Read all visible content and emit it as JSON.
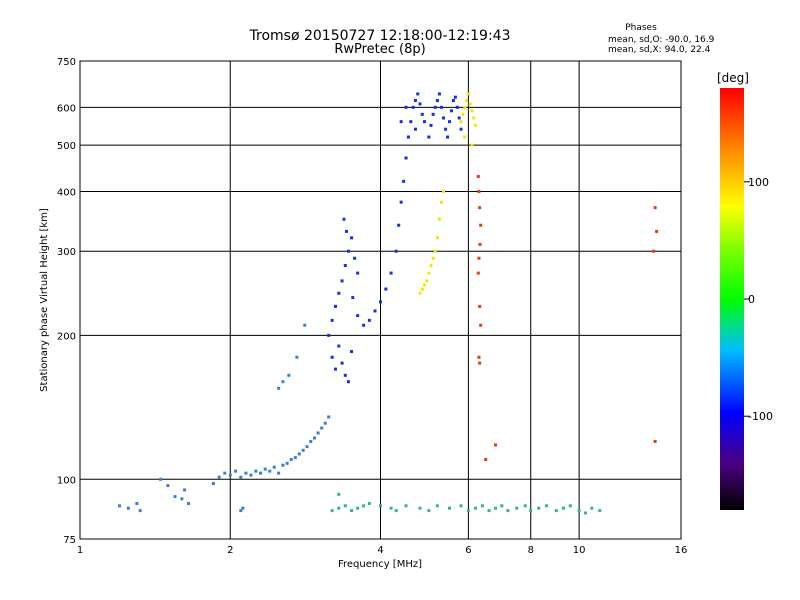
{
  "chart_data": {
    "type": "scatter",
    "title": "Tromsø 20150727 12:18:00-12:19:43",
    "subtitle": "RwPretec (8p)",
    "xlabel": "Frequency [MHz]",
    "ylabel": "Stationary phase Virtual Height [km]",
    "x_scale": "log",
    "y_scale": "log",
    "xlim": [
      1,
      16
    ],
    "ylim": [
      75,
      750
    ],
    "x_ticks": [
      1,
      2,
      4,
      6,
      8,
      10,
      16
    ],
    "y_ticks": [
      75,
      100,
      200,
      300,
      400,
      500,
      600,
      750
    ],
    "grid": true,
    "stats": {
      "heading": "Phases",
      "line_o": "mean, sd,O: -90.0, 16.9",
      "line_x": "mean, sd,X:  94.0, 22.4"
    },
    "colorbar": {
      "label": "[deg]",
      "ticks": [
        100,
        0,
        -100
      ],
      "range": [
        -180,
        180
      ]
    },
    "series": [
      {
        "points": [
          [
            1.2,
            88
          ],
          [
            1.25,
            87
          ],
          [
            1.3,
            89
          ],
          [
            1.32,
            86
          ],
          [
            1.45,
            100
          ],
          [
            1.5,
            97
          ],
          [
            1.55,
            92
          ],
          [
            1.6,
            91
          ],
          [
            1.65,
            89
          ],
          [
            1.62,
            95
          ],
          [
            1.85,
            98
          ],
          [
            1.9,
            101
          ],
          [
            1.95,
            103
          ],
          [
            2.0,
            102
          ],
          [
            2.05,
            104
          ],
          [
            2.1,
            101
          ],
          [
            2.15,
            103
          ],
          [
            2.2,
            102
          ],
          [
            2.25,
            104
          ],
          [
            2.3,
            103
          ],
          [
            2.35,
            105
          ],
          [
            2.4,
            104
          ],
          [
            2.45,
            106
          ],
          [
            2.5,
            103
          ],
          [
            2.55,
            107
          ],
          [
            2.6,
            108
          ],
          [
            2.65,
            110
          ],
          [
            2.7,
            111
          ],
          [
            2.75,
            113
          ],
          [
            2.8,
            115
          ],
          [
            2.85,
            117
          ],
          [
            2.9,
            120
          ],
          [
            2.95,
            122
          ],
          [
            3.0,
            125
          ],
          [
            3.05,
            128
          ],
          [
            3.1,
            131
          ],
          [
            3.15,
            135
          ],
          [
            2.5,
            155
          ],
          [
            2.55,
            160
          ],
          [
            2.62,
            165
          ],
          [
            2.72,
            180
          ],
          [
            2.82,
            210
          ],
          [
            2.1,
            86
          ],
          [
            2.12,
            87
          ]
        ]
      },
      {
        "points": [
          [
            3.15,
            200
          ],
          [
            3.2,
            215
          ],
          [
            3.25,
            230
          ],
          [
            3.3,
            245
          ],
          [
            3.35,
            260
          ],
          [
            3.4,
            280
          ],
          [
            3.45,
            300
          ],
          [
            3.5,
            320
          ],
          [
            3.55,
            290
          ],
          [
            3.6,
            270
          ],
          [
            3.2,
            180
          ],
          [
            3.25,
            170
          ],
          [
            3.3,
            190
          ],
          [
            3.35,
            175
          ],
          [
            3.4,
            165
          ],
          [
            3.45,
            160
          ],
          [
            3.5,
            185
          ],
          [
            3.38,
            350
          ],
          [
            3.42,
            330
          ],
          [
            3.52,
            240
          ],
          [
            3.6,
            220
          ],
          [
            3.7,
            210
          ],
          [
            3.8,
            215
          ],
          [
            3.9,
            225
          ],
          [
            4.0,
            235
          ],
          [
            4.1,
            250
          ],
          [
            4.2,
            270
          ],
          [
            4.3,
            300
          ],
          [
            4.35,
            340
          ],
          [
            4.4,
            380
          ],
          [
            4.45,
            420
          ],
          [
            4.5,
            470
          ],
          [
            4.55,
            520
          ],
          [
            4.6,
            560
          ],
          [
            4.65,
            600
          ],
          [
            4.7,
            620
          ],
          [
            4.75,
            640
          ],
          [
            4.8,
            610
          ],
          [
            4.85,
            580
          ],
          [
            4.9,
            560
          ],
          [
            5.0,
            520
          ],
          [
            5.05,
            550
          ],
          [
            5.1,
            580
          ],
          [
            5.15,
            600
          ],
          [
            5.2,
            620
          ],
          [
            5.25,
            640
          ],
          [
            5.3,
            600
          ],
          [
            5.35,
            570
          ],
          [
            5.4,
            540
          ],
          [
            5.45,
            520
          ],
          [
            5.5,
            560
          ],
          [
            5.55,
            590
          ],
          [
            5.6,
            620
          ],
          [
            5.65,
            630
          ],
          [
            5.7,
            600
          ],
          [
            5.75,
            570
          ],
          [
            5.8,
            540
          ],
          [
            4.4,
            560
          ],
          [
            4.5,
            600
          ],
          [
            4.7,
            540
          ]
        ]
      },
      {
        "points": [
          [
            4.8,
            245
          ],
          [
            4.85,
            250
          ],
          [
            4.9,
            255
          ],
          [
            4.95,
            260
          ],
          [
            5.0,
            270
          ],
          [
            5.05,
            280
          ],
          [
            5.1,
            290
          ],
          [
            5.15,
            300
          ],
          [
            5.2,
            320
          ],
          [
            5.25,
            350
          ],
          [
            5.3,
            380
          ],
          [
            5.35,
            400
          ],
          [
            5.8,
            560
          ],
          [
            5.85,
            580
          ],
          [
            5.9,
            600
          ],
          [
            5.95,
            620
          ],
          [
            6.0,
            640
          ],
          [
            6.05,
            610
          ],
          [
            6.1,
            590
          ],
          [
            6.15,
            570
          ],
          [
            6.2,
            550
          ],
          [
            5.9,
            520
          ],
          [
            6.1,
            500
          ]
        ]
      },
      {
        "points": [
          [
            6.28,
            430
          ],
          [
            6.3,
            400
          ],
          [
            6.32,
            370
          ],
          [
            6.35,
            340
          ],
          [
            6.33,
            310
          ],
          [
            6.3,
            290
          ],
          [
            6.28,
            270
          ],
          [
            6.32,
            230
          ],
          [
            6.35,
            210
          ],
          [
            6.3,
            180
          ],
          [
            6.32,
            175
          ],
          [
            6.5,
            110
          ],
          [
            6.8,
            118
          ],
          [
            14.2,
            370
          ],
          [
            14.3,
            330
          ],
          [
            14.1,
            300
          ],
          [
            14.2,
            120
          ]
        ]
      },
      {
        "points": [
          [
            3.2,
            86
          ],
          [
            3.3,
            87
          ],
          [
            3.4,
            88
          ],
          [
            3.5,
            86
          ],
          [
            3.6,
            87
          ],
          [
            3.7,
            88
          ],
          [
            3.3,
            93
          ],
          [
            3.8,
            89
          ],
          [
            4.0,
            88
          ],
          [
            4.2,
            87
          ],
          [
            4.3,
            86
          ],
          [
            4.5,
            88
          ],
          [
            4.8,
            87
          ],
          [
            5.0,
            86
          ],
          [
            5.2,
            88
          ],
          [
            5.5,
            87
          ],
          [
            5.8,
            88
          ],
          [
            6.0,
            86
          ],
          [
            6.2,
            87
          ],
          [
            6.4,
            88
          ],
          [
            6.6,
            86
          ],
          [
            6.8,
            87
          ],
          [
            7.0,
            88
          ],
          [
            7.2,
            86
          ],
          [
            7.5,
            87
          ],
          [
            7.8,
            88
          ],
          [
            8.0,
            86
          ],
          [
            8.3,
            87
          ],
          [
            8.6,
            88
          ],
          [
            9.0,
            86
          ],
          [
            9.3,
            87
          ],
          [
            9.6,
            88
          ],
          [
            10.0,
            86
          ],
          [
            10.3,
            85
          ],
          [
            10.6,
            87
          ],
          [
            11.0,
            86
          ]
        ]
      }
    ]
  }
}
